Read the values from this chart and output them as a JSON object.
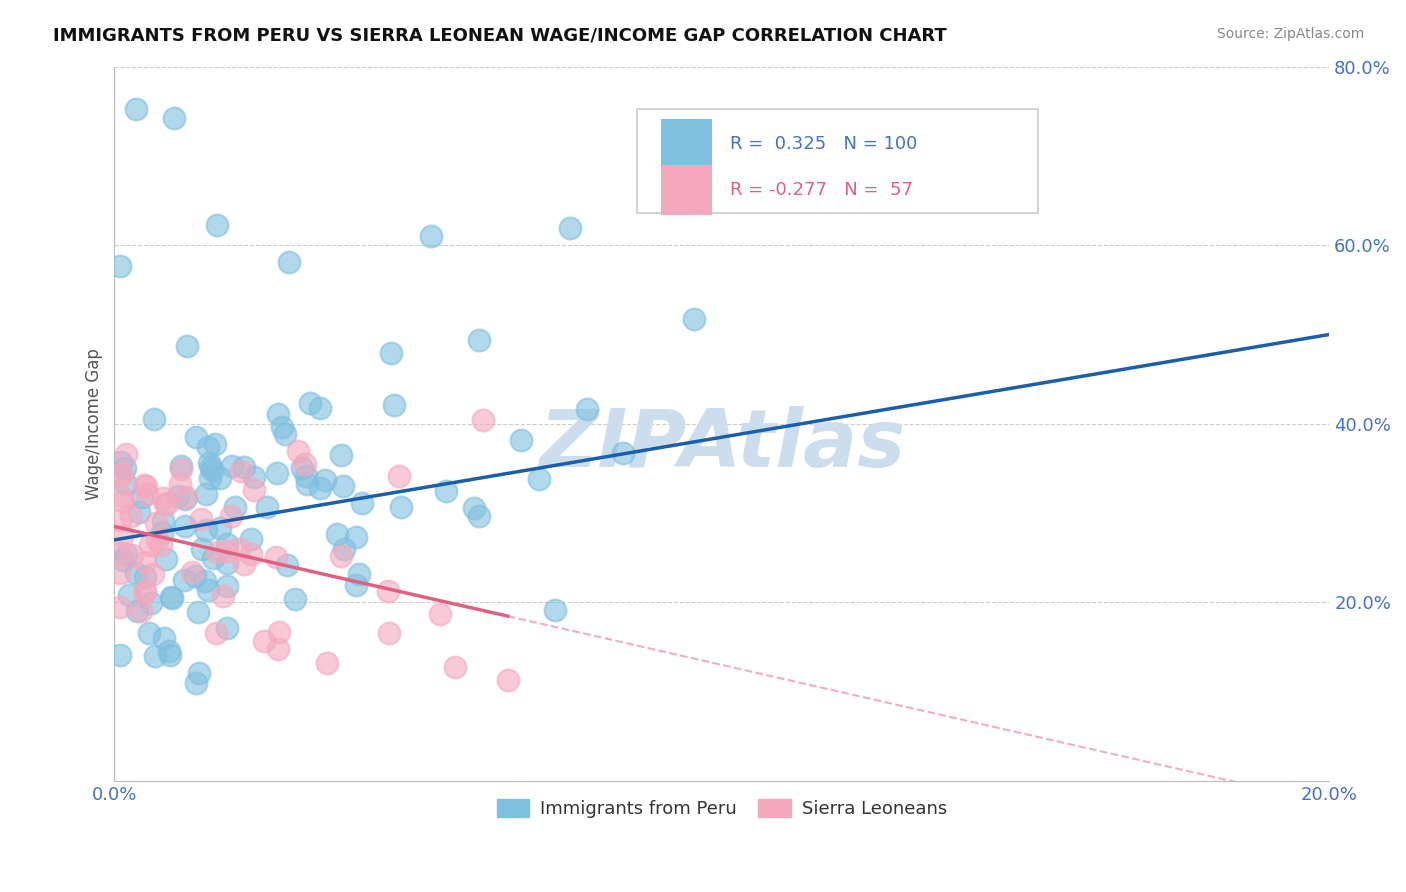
{
  "title": "IMMIGRANTS FROM PERU VS SIERRA LEONEAN WAGE/INCOME GAP CORRELATION CHART",
  "source": "Source: ZipAtlas.com",
  "ylabel": "Wage/Income Gap",
  "xlim": [
    0.0,
    0.2
  ],
  "ylim": [
    0.0,
    0.8
  ],
  "xticks": [
    0.0,
    0.04,
    0.08,
    0.12,
    0.16,
    0.2
  ],
  "yticks": [
    0.0,
    0.2,
    0.4,
    0.6,
    0.8
  ],
  "blue_R": 0.325,
  "blue_N": 100,
  "pink_R": -0.277,
  "pink_N": 57,
  "blue_color": "#7fbfdf",
  "pink_color": "#f4a8be",
  "blue_line_color": "#1a5fa8",
  "pink_line_color": "#e06080",
  "watermark": "ZIPAtlas",
  "watermark_color": "#ccdded",
  "legend_blue": "Immigrants from Peru",
  "legend_pink": "Sierra Leoneans",
  "background_color": "#ffffff",
  "grid_color": "#cccccc",
  "axis_color": "#4472c4",
  "title_color": "#111111",
  "source_color": "#888888"
}
